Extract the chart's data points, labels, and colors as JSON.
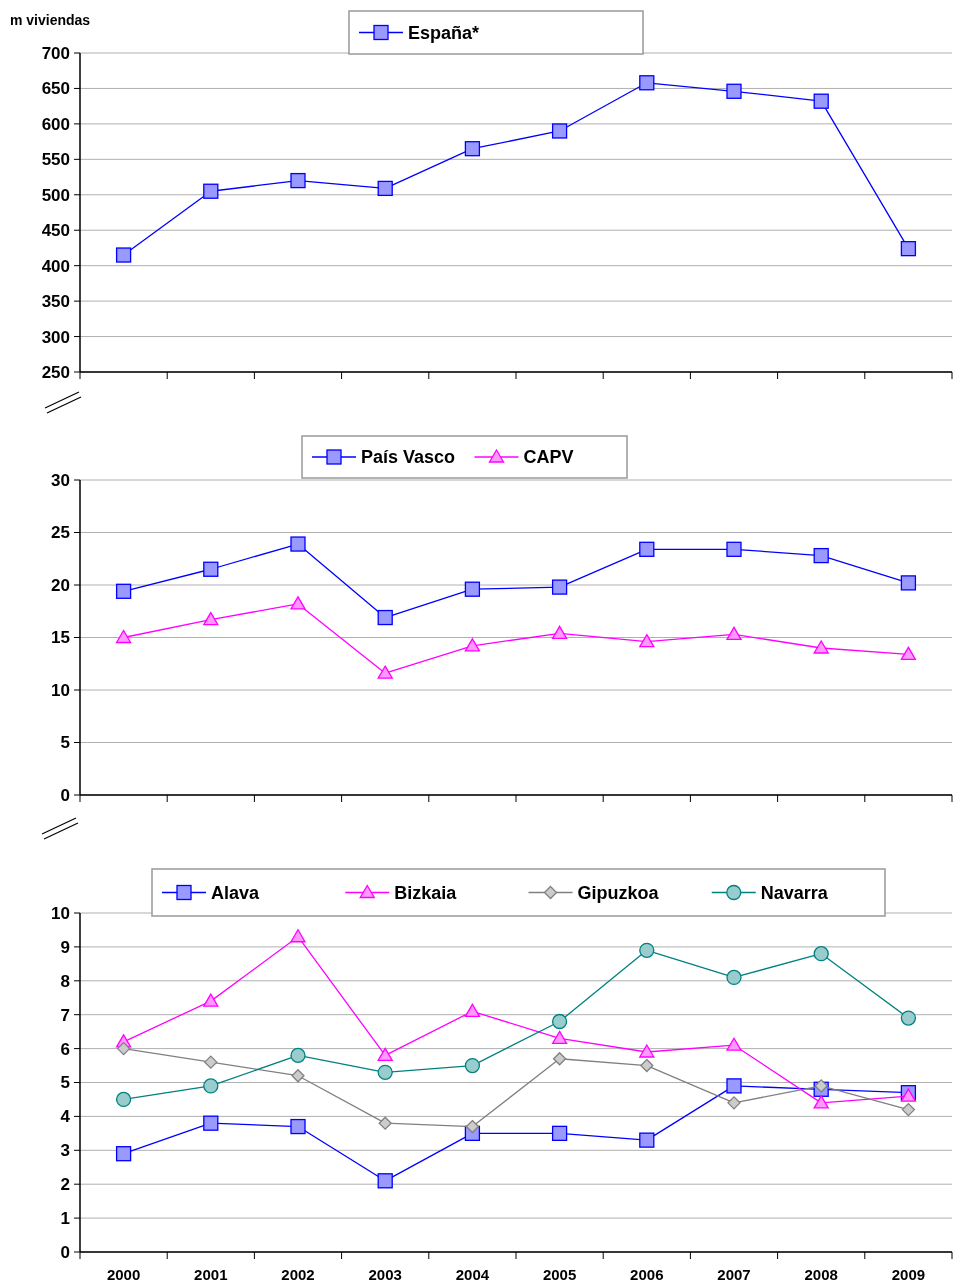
{
  "chart_data": [
    {
      "type": "line",
      "ylabel": "m viviendas",
      "categories": [
        null,
        null,
        null,
        null,
        null,
        null,
        null,
        null,
        null,
        null
      ],
      "tick_labels": "y",
      "ylim": [
        250,
        700
      ],
      "yticks": [
        250,
        300,
        350,
        400,
        450,
        500,
        550,
        600,
        650,
        700
      ],
      "grid": "y",
      "legend": "top",
      "series": [
        {
          "name": "España*",
          "color": "#0000ff",
          "marker": "square",
          "values": [
            415,
            505,
            520,
            509,
            565,
            590,
            658,
            646,
            632,
            424
          ]
        }
      ]
    },
    {
      "type": "line",
      "categories": [
        null,
        null,
        null,
        null,
        null,
        null,
        null,
        null,
        null,
        null
      ],
      "tick_labels": "y",
      "ylim": [
        0,
        30
      ],
      "yticks": [
        0,
        5,
        10,
        15,
        20,
        25,
        30
      ],
      "grid": "y",
      "legend": "top",
      "series": [
        {
          "name": "País Vasco",
          "color": "#0000ff",
          "marker": "square",
          "values": [
            19.4,
            21.5,
            23.9,
            16.9,
            19.6,
            19.8,
            23.4,
            23.4,
            22.8,
            20.2
          ]
        },
        {
          "name": "CAPV",
          "color": "#ff00ff",
          "marker": "triangle",
          "values": [
            15.0,
            16.7,
            18.2,
            11.6,
            14.2,
            15.4,
            14.6,
            15.3,
            14.0,
            13.4
          ]
        }
      ]
    },
    {
      "type": "line",
      "categories": [
        "2000",
        "2001",
        "2002",
        "2003",
        "2004",
        "2005",
        "2006",
        "2007",
        "2008",
        "2009"
      ],
      "ylim": [
        0,
        10
      ],
      "yticks": [
        0,
        1,
        2,
        3,
        4,
        5,
        6,
        7,
        8,
        9,
        10
      ],
      "grid": "y",
      "legend": "top",
      "series": [
        {
          "name": "Alava",
          "color": "#0000ff",
          "marker": "square",
          "values": [
            2.9,
            3.8,
            3.7,
            2.1,
            3.5,
            3.5,
            3.3,
            4.9,
            4.8,
            4.7
          ]
        },
        {
          "name": "Bizkaia",
          "color": "#ff00ff",
          "marker": "triangle",
          "values": [
            6.2,
            7.4,
            9.3,
            5.8,
            7.1,
            6.3,
            5.9,
            6.1,
            4.4,
            4.6
          ]
        },
        {
          "name": "Gipuzkoa",
          "color": "#808080",
          "marker": "diamond",
          "values": [
            6.0,
            5.6,
            5.2,
            3.8,
            3.7,
            5.7,
            5.5,
            4.4,
            4.9,
            4.2
          ]
        },
        {
          "name": "Navarra",
          "color": "#008080",
          "marker": "circle",
          "values": [
            4.5,
            4.9,
            5.8,
            5.3,
            5.5,
            6.8,
            8.9,
            8.1,
            8.8,
            6.9
          ]
        }
      ]
    }
  ]
}
